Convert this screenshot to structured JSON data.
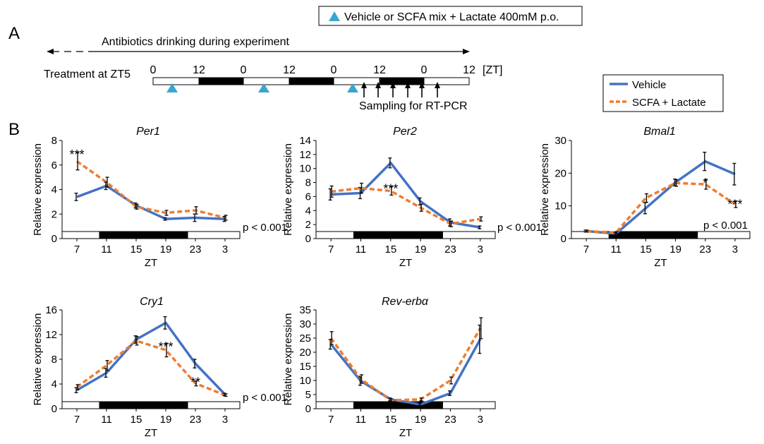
{
  "colors": {
    "vehicle": "#4472C4",
    "scfa": "#ED7D31",
    "triangle": "#3AA6D0",
    "black": "#000000"
  },
  "panel_a": {
    "letter": "A",
    "box_label": "Vehicle or SCFA mix + Lactate 400mM p.o.",
    "antibiotics_label": "Antibiotics drinking during experiment",
    "treatment_label": "Treatment at ZT5",
    "zt_ticks": [
      "0",
      "12",
      "0",
      "12",
      "0",
      "12",
      "0",
      "12"
    ],
    "zt_unit": "[ZT]",
    "sampling_label": "Sampling for RT-PCR"
  },
  "legend": {
    "vehicle": "Vehicle",
    "scfa": "SCFA + Lactate"
  },
  "panel_b": {
    "letter": "B"
  },
  "chart_data": [
    {
      "type": "line",
      "title": "Per1",
      "xlabel": "ZT",
      "ylabel": "Relative expression",
      "categories": [
        "7",
        "11",
        "15",
        "19",
        "23",
        "3"
      ],
      "ylim": [
        0,
        8
      ],
      "yticks": [
        "0",
        "2",
        "4",
        "6",
        "8"
      ],
      "series": [
        {
          "name": "Vehicle",
          "values": [
            3.4,
            4.3,
            2.7,
            1.6,
            1.7,
            1.6
          ],
          "errors": [
            0.3,
            0.3,
            0.2,
            0.1,
            0.3,
            0.2
          ]
        },
        {
          "name": "SCFA + Lactate",
          "values": [
            6.3,
            4.6,
            2.6,
            2.1,
            2.3,
            1.7
          ],
          "errors": [
            0.7,
            0.4,
            0.2,
            0.2,
            0.3,
            0.2
          ]
        }
      ],
      "annotations": [
        {
          "text": "***",
          "x": "7",
          "y": 7.2
        }
      ],
      "pvalue": "p < 0.001"
    },
    {
      "type": "line",
      "title": "Per2",
      "xlabel": "ZT",
      "ylabel": "Relative expression",
      "categories": [
        "7",
        "11",
        "15",
        "19",
        "23",
        "3"
      ],
      "ylim": [
        0,
        14
      ],
      "yticks": [
        "0",
        "2",
        "4",
        "6",
        "8",
        "10",
        "12",
        "14"
      ],
      "series": [
        {
          "name": "Vehicle",
          "values": [
            6.3,
            6.5,
            10.8,
            5.3,
            2.3,
            1.6
          ],
          "errors": [
            0.8,
            0.8,
            0.7,
            0.5,
            0.5,
            0.2
          ]
        },
        {
          "name": "SCFA + Lactate",
          "values": [
            6.7,
            7.2,
            6.8,
            4.4,
            2.1,
            2.8
          ],
          "errors": [
            0.8,
            0.7,
            0.6,
            0.5,
            0.4,
            0.3
          ]
        }
      ],
      "annotations": [
        {
          "text": "***",
          "x": "15",
          "y": 7.7
        }
      ],
      "pvalue": "p < 0.001"
    },
    {
      "type": "line",
      "title": "Bmal1",
      "xlabel": "ZT",
      "ylabel": "Relative expression",
      "categories": [
        "7",
        "11",
        "15",
        "19",
        "23",
        "3"
      ],
      "ylim": [
        0,
        30
      ],
      "yticks": [
        "0",
        "10",
        "20",
        "30"
      ],
      "series": [
        {
          "name": "Vehicle",
          "values": [
            2.3,
            1.5,
            9.3,
            17.2,
            23.6,
            19.7
          ],
          "errors": [
            0.3,
            0.3,
            1.7,
            1.0,
            2.8,
            3.3
          ]
        },
        {
          "name": "SCFA + Lactate",
          "values": [
            2.3,
            1.8,
            12.4,
            17.0,
            16.6,
            10.5
          ],
          "errors": [
            0.3,
            0.3,
            1.3,
            1.0,
            1.5,
            1.0
          ]
        }
      ],
      "annotations": [
        {
          "text": "*",
          "x": "23",
          "y": 18.2
        },
        {
          "text": "***",
          "x": "3",
          "y": 11.8
        }
      ],
      "pvalue": "p < 0.001"
    },
    {
      "type": "line",
      "title": "Cry1",
      "xlabel": "ZT",
      "ylabel": "Relative expression",
      "categories": [
        "7",
        "11",
        "15",
        "19",
        "23",
        "3"
      ],
      "ylim": [
        0,
        16
      ],
      "yticks": [
        "0",
        "4",
        "8",
        "12",
        "16"
      ],
      "series": [
        {
          "name": "Vehicle",
          "values": [
            3.0,
            5.8,
            11.2,
            13.9,
            7.3,
            2.3
          ],
          "errors": [
            0.4,
            0.7,
            0.6,
            1.0,
            0.7,
            0.2
          ]
        },
        {
          "name": "SCFA + Lactate",
          "values": [
            3.5,
            7.0,
            11.0,
            9.5,
            4.1,
            2.2
          ],
          "errors": [
            0.4,
            0.8,
            0.7,
            1.1,
            0.4,
            0.2
          ]
        }
      ],
      "annotations": [
        {
          "text": "***",
          "x": "19",
          "y": 10.7
        },
        {
          "text": "**",
          "x": "23",
          "y": 5.0
        }
      ],
      "pvalue": "p < 0.001"
    },
    {
      "type": "line",
      "title": "Rev-erbα",
      "xlabel": "ZT",
      "ylabel": "Relative expression",
      "categories": [
        "7",
        "11",
        "15",
        "19",
        "23",
        "3"
      ],
      "ylim": [
        0,
        35
      ],
      "yticks": [
        "0",
        "5",
        "10",
        "15",
        "20",
        "25",
        "30",
        "35"
      ],
      "series": [
        {
          "name": "Vehicle",
          "values": [
            22.8,
            9.8,
            3.3,
            1.5,
            5.5,
            24.6
          ],
          "errors": [
            1.7,
            1.5,
            0.5,
            0.3,
            0.8,
            5.0
          ]
        },
        {
          "name": "SCFA + Lactate",
          "values": [
            25.0,
            10.5,
            3.0,
            3.3,
            10.0,
            28.5
          ],
          "errors": [
            2.3,
            1.5,
            0.5,
            0.5,
            1.2,
            3.7
          ]
        }
      ],
      "annotations": [],
      "pvalue": ""
    }
  ]
}
